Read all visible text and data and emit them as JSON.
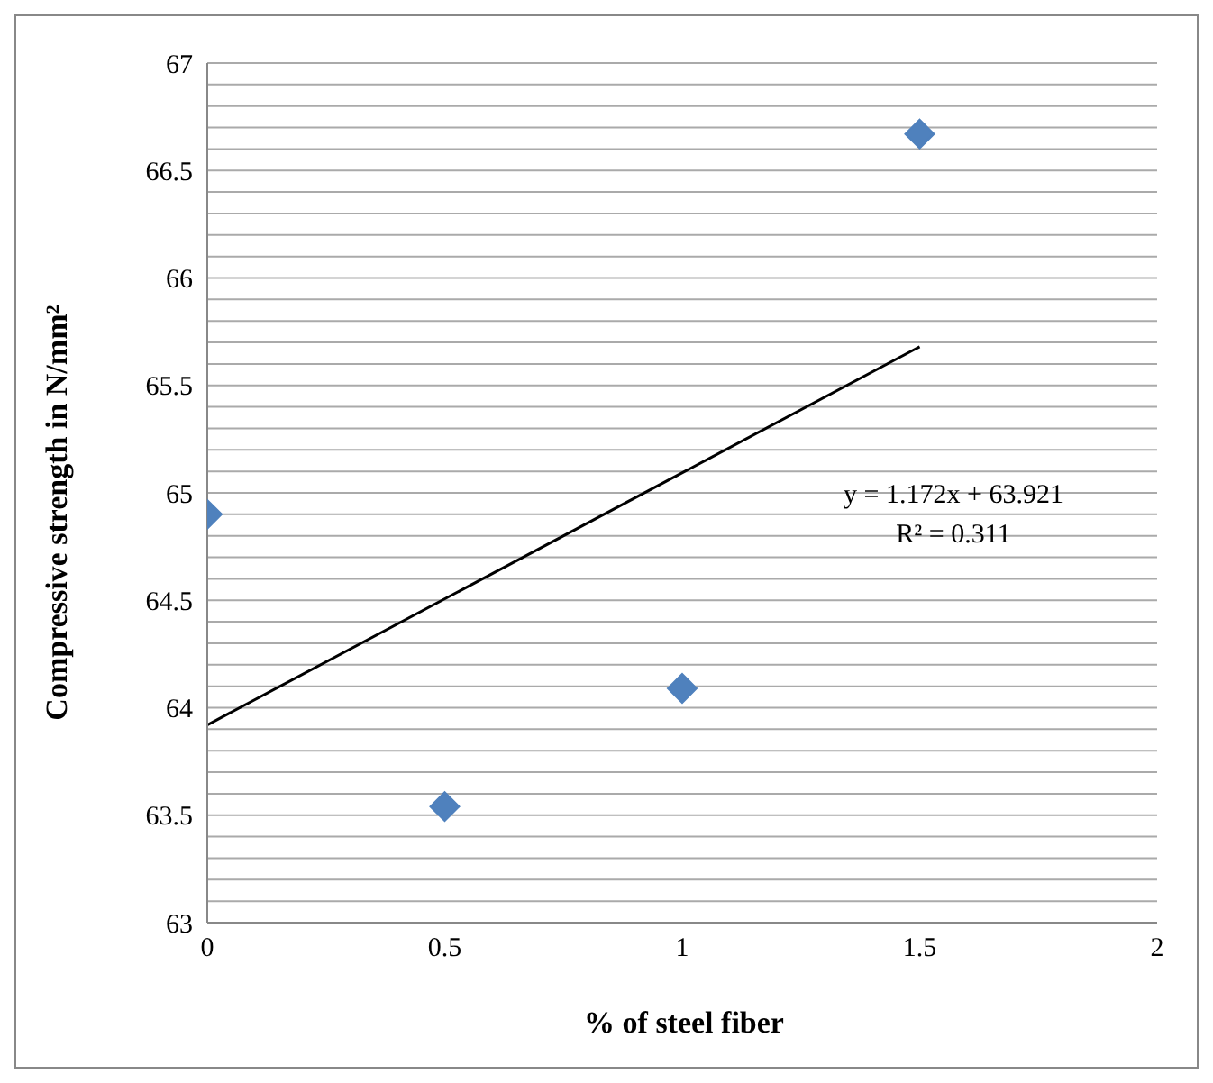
{
  "chart_data": {
    "type": "scatter",
    "xlabel": "% of steel fiber",
    "ylabel": "Compressive strength in N/mm²",
    "x": [
      0,
      0.5,
      1,
      1.5
    ],
    "series": [
      {
        "color": "#4f81bd",
        "values": [
          64.9,
          63.54,
          64.09,
          66.67
        ],
        "marker": "diamond"
      },
      {
        "type": "line",
        "color": "#000000",
        "x": [
          0,
          1.5
        ],
        "values": [
          63.92,
          65.68
        ],
        "marker": "none",
        "line_style": "solid"
      }
    ],
    "annotations": [
      "y = 1.172x + 63.921",
      "R² = 0.311"
    ],
    "xlim": [
      0,
      2
    ],
    "xticks": [
      0,
      0.5,
      1,
      1.5,
      2
    ],
    "ylim": [
      63,
      67
    ],
    "yticks": [
      63,
      {
        "value": 63.1,
        "label": null
      },
      {
        "value": 63.2,
        "label": null
      },
      {
        "value": 63.3,
        "label": null
      },
      {
        "value": 63.4,
        "label": null
      },
      63.5,
      {
        "value": 63.6,
        "label": null
      },
      {
        "value": 63.7,
        "label": null
      },
      {
        "value": 63.8,
        "label": null
      },
      {
        "value": 63.9,
        "label": null
      },
      64,
      {
        "value": 64.1,
        "label": null
      },
      {
        "value": 64.2,
        "label": null
      },
      {
        "value": 64.3,
        "label": null
      },
      {
        "value": 64.4,
        "label": null
      },
      64.5,
      {
        "value": 64.6,
        "label": null
      },
      {
        "value": 64.7,
        "label": null
      },
      {
        "value": 64.8,
        "label": null
      },
      {
        "value": 64.9,
        "label": null
      },
      65,
      {
        "value": 65.1,
        "label": null
      },
      {
        "value": 65.2,
        "label": null
      },
      {
        "value": 65.3,
        "label": null
      },
      {
        "value": 65.4,
        "label": null
      },
      65.5,
      {
        "value": 65.6,
        "label": null
      },
      {
        "value": 65.7,
        "label": null
      },
      {
        "value": 65.8,
        "label": null
      },
      {
        "value": 65.9,
        "label": null
      },
      66,
      {
        "value": 66.1,
        "label": null
      },
      {
        "value": 66.2,
        "label": null
      },
      {
        "value": 66.3,
        "label": null
      },
      {
        "value": 66.4,
        "label": null
      },
      66.5,
      {
        "value": 66.6,
        "label": null
      },
      {
        "value": 66.7,
        "label": null
      },
      {
        "value": 66.8,
        "label": null
      },
      {
        "value": 66.9,
        "label": null
      },
      67
    ],
    "grid": "y"
  }
}
